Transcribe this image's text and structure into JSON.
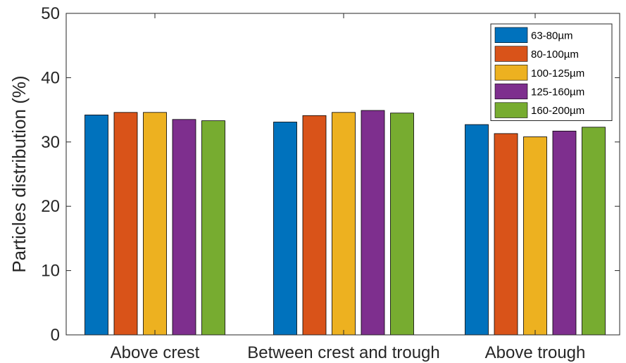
{
  "chart_data": {
    "type": "bar",
    "ylabel": "Particles distribution (%)",
    "xlabel": "",
    "ylim": [
      0,
      50
    ],
    "yticks": [
      "0",
      "10",
      "20",
      "30",
      "40",
      "50"
    ],
    "categories": [
      "Above crest",
      "Between crest and trough",
      "Above trough"
    ],
    "series": [
      {
        "name": "63-80µm",
        "color": "#0072BD",
        "values": [
          34.2,
          33.1,
          32.7
        ]
      },
      {
        "name": "80-100µm",
        "color": "#D95319",
        "values": [
          34.6,
          34.1,
          31.3
        ]
      },
      {
        "name": "100-125µm",
        "color": "#EDB120",
        "values": [
          34.6,
          34.6,
          30.8
        ]
      },
      {
        "name": "125-160µm",
        "color": "#7E2F8E",
        "values": [
          33.5,
          34.9,
          31.7
        ]
      },
      {
        "name": "160-200µm",
        "color": "#77AC30",
        "values": [
          33.3,
          34.5,
          32.3
        ]
      }
    ],
    "legend_position": "top-right",
    "grid": false
  }
}
